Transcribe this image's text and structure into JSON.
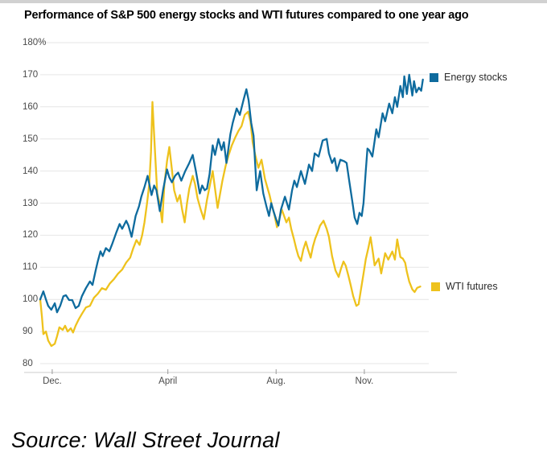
{
  "title": "Performance of S&P 500 energy stocks and WTI futures compared to one year ago",
  "source": "Source: Wall Street Journal",
  "legend": [
    {
      "label": "Energy stocks",
      "color": "#0e6b9e"
    },
    {
      "label": "WTI futures",
      "color": "#eec21d"
    }
  ],
  "chart_data": {
    "type": "line",
    "title": "Performance of S&P 500 energy stocks and WTI futures compared to one year ago",
    "xlabel": "",
    "ylabel": "",
    "ylim": [
      80,
      180
    ],
    "grid": true,
    "legend_position": "right of line ends",
    "y_ticks": [
      "180%",
      "170",
      "160",
      "150",
      "140",
      "130",
      "120",
      "110",
      "100",
      "90",
      "80"
    ],
    "x_unit": "months from chart start (mid-November of prior year)",
    "x_ticks": [
      {
        "label": "Dec.",
        "t": 0.42
      },
      {
        "label": "April",
        "t": 4.47
      },
      {
        "label": "Aug.",
        "t": 8.26
      },
      {
        "label": "Nov.",
        "t": 11.35
      }
    ],
    "series": [
      {
        "name": "Energy stocks",
        "color": "#0e6b9e",
        "points": [
          [
            0,
            100
          ],
          [
            0.11,
            102.5
          ],
          [
            0.2,
            100
          ],
          [
            0.28,
            98
          ],
          [
            0.39,
            96.8
          ],
          [
            0.51,
            98.8
          ],
          [
            0.59,
            96
          ],
          [
            0.7,
            98
          ],
          [
            0.81,
            101
          ],
          [
            0.9,
            101.3
          ],
          [
            1.01,
            99.8
          ],
          [
            1.12,
            99.8
          ],
          [
            1.24,
            97.3
          ],
          [
            1.35,
            98
          ],
          [
            1.46,
            101
          ],
          [
            1.6,
            103.5
          ],
          [
            1.74,
            105.6
          ],
          [
            1.83,
            104.5
          ],
          [
            1.94,
            109
          ],
          [
            2.02,
            112
          ],
          [
            2.11,
            115
          ],
          [
            2.19,
            113.5
          ],
          [
            2.3,
            116
          ],
          [
            2.42,
            115
          ],
          [
            2.53,
            117.5
          ],
          [
            2.67,
            121
          ],
          [
            2.78,
            123.5
          ],
          [
            2.87,
            122
          ],
          [
            3.01,
            124.5
          ],
          [
            3.09,
            123
          ],
          [
            3.2,
            119.5
          ],
          [
            3.34,
            126
          ],
          [
            3.46,
            129
          ],
          [
            3.54,
            132
          ],
          [
            3.65,
            135
          ],
          [
            3.76,
            138.5
          ],
          [
            3.9,
            132.5
          ],
          [
            3.99,
            135.5
          ],
          [
            4.07,
            134
          ],
          [
            4.19,
            127.5
          ],
          [
            4.3,
            134
          ],
          [
            4.44,
            140.5
          ],
          [
            4.52,
            138
          ],
          [
            4.61,
            136.5
          ],
          [
            4.72,
            138.5
          ],
          [
            4.83,
            139.5
          ],
          [
            4.94,
            137
          ],
          [
            5.08,
            140
          ],
          [
            5.22,
            142.5
          ],
          [
            5.34,
            145
          ],
          [
            5.45,
            140
          ],
          [
            5.59,
            133
          ],
          [
            5.67,
            135.5
          ],
          [
            5.76,
            134
          ],
          [
            5.84,
            134.5
          ],
          [
            5.93,
            139
          ],
          [
            6.04,
            148
          ],
          [
            6.12,
            145
          ],
          [
            6.24,
            150
          ],
          [
            6.35,
            146.5
          ],
          [
            6.43,
            149
          ],
          [
            6.52,
            142.5
          ],
          [
            6.66,
            151.5
          ],
          [
            6.74,
            155
          ],
          [
            6.88,
            159.5
          ],
          [
            6.99,
            157.5
          ],
          [
            7.13,
            162.5
          ],
          [
            7.22,
            165.5
          ],
          [
            7.3,
            162
          ],
          [
            7.39,
            155
          ],
          [
            7.47,
            151
          ],
          [
            7.58,
            134
          ],
          [
            7.7,
            140
          ],
          [
            7.81,
            133
          ],
          [
            7.92,
            129
          ],
          [
            8.01,
            126
          ],
          [
            8.09,
            130
          ],
          [
            8.17,
            127.5
          ],
          [
            8.26,
            125
          ],
          [
            8.34,
            123
          ],
          [
            8.43,
            128
          ],
          [
            8.57,
            132
          ],
          [
            8.71,
            128
          ],
          [
            8.82,
            134
          ],
          [
            8.9,
            137
          ],
          [
            8.99,
            135
          ],
          [
            9.13,
            140
          ],
          [
            9.27,
            136
          ],
          [
            9.41,
            142
          ],
          [
            9.52,
            140
          ],
          [
            9.61,
            145.5
          ],
          [
            9.75,
            144.5
          ],
          [
            9.89,
            149.5
          ],
          [
            10.03,
            150
          ],
          [
            10.11,
            145.5
          ],
          [
            10.22,
            142.5
          ],
          [
            10.31,
            144
          ],
          [
            10.39,
            140
          ],
          [
            10.51,
            143.5
          ],
          [
            10.65,
            143
          ],
          [
            10.73,
            142.5
          ],
          [
            10.81,
            137.5
          ],
          [
            10.93,
            130.5
          ],
          [
            11.01,
            125.5
          ],
          [
            11.1,
            123.5
          ],
          [
            11.18,
            127
          ],
          [
            11.26,
            126
          ],
          [
            11.32,
            130
          ],
          [
            11.4,
            140
          ],
          [
            11.46,
            147
          ],
          [
            11.52,
            146.5
          ],
          [
            11.63,
            144.5
          ],
          [
            11.77,
            153
          ],
          [
            11.85,
            150.5
          ],
          [
            11.99,
            158
          ],
          [
            12.08,
            155.5
          ],
          [
            12.22,
            161
          ],
          [
            12.33,
            158
          ],
          [
            12.42,
            163
          ],
          [
            12.5,
            160
          ],
          [
            12.61,
            166.5
          ],
          [
            12.7,
            163
          ],
          [
            12.75,
            169.5
          ],
          [
            12.84,
            164
          ],
          [
            12.92,
            170
          ],
          [
            13.03,
            163.5
          ],
          [
            13.09,
            168
          ],
          [
            13.17,
            164.5
          ],
          [
            13.26,
            166
          ],
          [
            13.34,
            165
          ],
          [
            13.4,
            168.5
          ]
        ]
      },
      {
        "name": "WTI futures",
        "color": "#eec21d",
        "points": [
          [
            0,
            100
          ],
          [
            0.06,
            94.7
          ],
          [
            0.11,
            89.2
          ],
          [
            0.2,
            90
          ],
          [
            0.28,
            87.2
          ],
          [
            0.39,
            85.5
          ],
          [
            0.51,
            86.2
          ],
          [
            0.59,
            88.5
          ],
          [
            0.67,
            91.3
          ],
          [
            0.79,
            90.5
          ],
          [
            0.87,
            91.8
          ],
          [
            0.96,
            90
          ],
          [
            1.07,
            91
          ],
          [
            1.15,
            89.7
          ],
          [
            1.24,
            91.8
          ],
          [
            1.35,
            93.8
          ],
          [
            1.46,
            95.5
          ],
          [
            1.6,
            97.5
          ],
          [
            1.74,
            98
          ],
          [
            1.88,
            100.5
          ],
          [
            2.02,
            101.8
          ],
          [
            2.16,
            103.5
          ],
          [
            2.3,
            103
          ],
          [
            2.44,
            105
          ],
          [
            2.58,
            106.3
          ],
          [
            2.72,
            108
          ],
          [
            2.87,
            109.3
          ],
          [
            3.01,
            111.5
          ],
          [
            3.15,
            113
          ],
          [
            3.26,
            116
          ],
          [
            3.37,
            118.5
          ],
          [
            3.48,
            117
          ],
          [
            3.57,
            120
          ],
          [
            3.65,
            124
          ],
          [
            3.74,
            130
          ],
          [
            3.82,
            136
          ],
          [
            3.88,
            146
          ],
          [
            3.93,
            161.5
          ],
          [
            4.02,
            146
          ],
          [
            4.1,
            133
          ],
          [
            4.19,
            129.5
          ],
          [
            4.27,
            124
          ],
          [
            4.35,
            136
          ],
          [
            4.44,
            143
          ],
          [
            4.52,
            147.5
          ],
          [
            4.61,
            140.5
          ],
          [
            4.69,
            134
          ],
          [
            4.8,
            130.5
          ],
          [
            4.89,
            132.5
          ],
          [
            4.97,
            128
          ],
          [
            5.06,
            124
          ],
          [
            5.14,
            130
          ],
          [
            5.22,
            134.5
          ],
          [
            5.34,
            138.5
          ],
          [
            5.42,
            136
          ],
          [
            5.51,
            131.5
          ],
          [
            5.62,
            128
          ],
          [
            5.73,
            125
          ],
          [
            5.84,
            131
          ],
          [
            5.96,
            136.5
          ],
          [
            6.04,
            140
          ],
          [
            6.12,
            134.5
          ],
          [
            6.21,
            128.5
          ],
          [
            6.29,
            132.5
          ],
          [
            6.38,
            137
          ],
          [
            6.49,
            141.5
          ],
          [
            6.6,
            145
          ],
          [
            6.71,
            148
          ],
          [
            6.83,
            150.5
          ],
          [
            6.94,
            152.5
          ],
          [
            7.05,
            154
          ],
          [
            7.16,
            157.5
          ],
          [
            7.28,
            158.5
          ],
          [
            7.36,
            155.5
          ],
          [
            7.44,
            149
          ],
          [
            7.53,
            145
          ],
          [
            7.64,
            141
          ],
          [
            7.75,
            143.5
          ],
          [
            7.87,
            137.5
          ],
          [
            7.95,
            135
          ],
          [
            8.03,
            132.5
          ],
          [
            8.12,
            129
          ],
          [
            8.2,
            126.5
          ],
          [
            8.29,
            122.5
          ],
          [
            8.37,
            125
          ],
          [
            8.46,
            128
          ],
          [
            8.54,
            126
          ],
          [
            8.62,
            124
          ],
          [
            8.71,
            125.5
          ],
          [
            8.79,
            122
          ],
          [
            8.88,
            119
          ],
          [
            8.96,
            116
          ],
          [
            9.04,
            113.5
          ],
          [
            9.13,
            112
          ],
          [
            9.21,
            115.5
          ],
          [
            9.3,
            118
          ],
          [
            9.38,
            115.5
          ],
          [
            9.47,
            113
          ],
          [
            9.55,
            116.5
          ],
          [
            9.63,
            119
          ],
          [
            9.72,
            121
          ],
          [
            9.8,
            123
          ],
          [
            9.92,
            124.5
          ],
          [
            10.03,
            122
          ],
          [
            10.11,
            119.5
          ],
          [
            10.22,
            113.5
          ],
          [
            10.34,
            109
          ],
          [
            10.45,
            107
          ],
          [
            10.53,
            109.5
          ],
          [
            10.62,
            111.8
          ],
          [
            10.7,
            110.5
          ],
          [
            10.79,
            107.5
          ],
          [
            10.87,
            104.5
          ],
          [
            10.96,
            101
          ],
          [
            11.07,
            98
          ],
          [
            11.15,
            98.5
          ],
          [
            11.24,
            103.5
          ],
          [
            11.32,
            108
          ],
          [
            11.4,
            112.5
          ],
          [
            11.49,
            116
          ],
          [
            11.57,
            119.4
          ],
          [
            11.66,
            114
          ],
          [
            11.71,
            110.6
          ],
          [
            11.85,
            112.7
          ],
          [
            11.94,
            108.1
          ],
          [
            12.08,
            114.4
          ],
          [
            12.19,
            112.4
          ],
          [
            12.33,
            114.9
          ],
          [
            12.42,
            112.4
          ],
          [
            12.5,
            118.7
          ],
          [
            12.61,
            113.2
          ],
          [
            12.7,
            112.7
          ],
          [
            12.78,
            111.4
          ],
          [
            12.84,
            108.6
          ],
          [
            12.92,
            105.6
          ],
          [
            13.03,
            103.1
          ],
          [
            13.11,
            102.3
          ],
          [
            13.2,
            103.6
          ],
          [
            13.31,
            104
          ]
        ]
      }
    ]
  }
}
